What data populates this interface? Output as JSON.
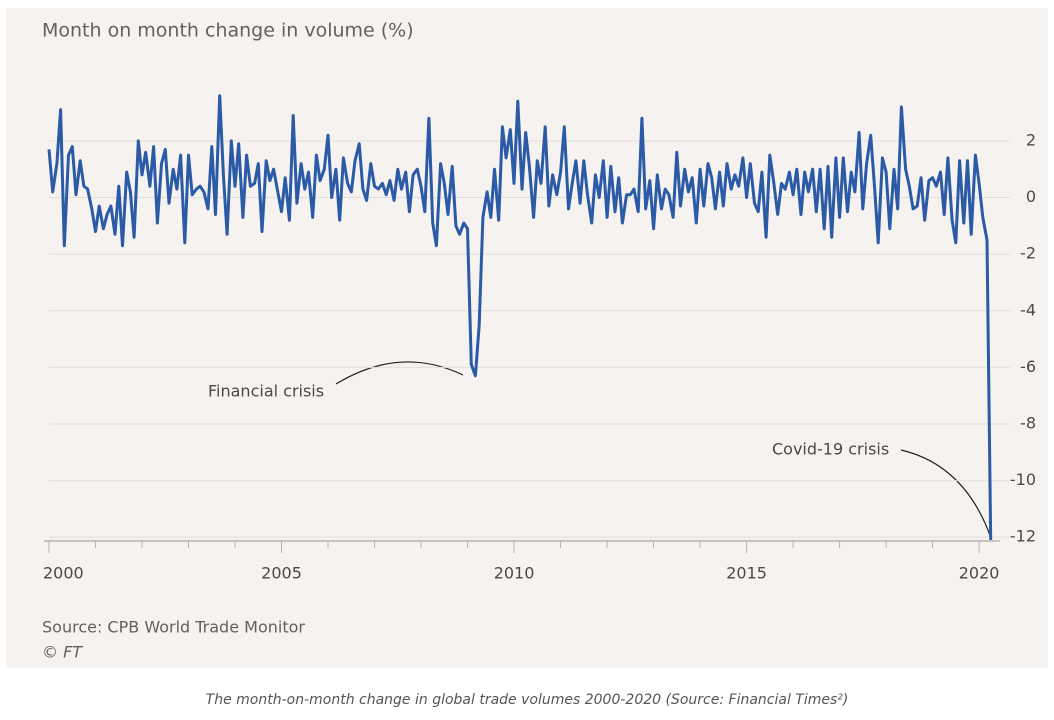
{
  "chart_data": {
    "type": "line",
    "title": "Month on month change in volume (%)",
    "x": [
      2000,
      2000.08,
      2000.17,
      2000.25,
      2000.33,
      2000.42,
      2000.5,
      2000.58,
      2000.67,
      2000.75,
      2000.83,
      2000.92,
      2001,
      2001.08,
      2001.17,
      2001.25,
      2001.33,
      2001.42,
      2001.5,
      2001.58,
      2001.67,
      2001.75,
      2001.83,
      2001.92,
      2002,
      2002.08,
      2002.17,
      2002.25,
      2002.33,
      2002.42,
      2002.5,
      2002.58,
      2002.67,
      2002.75,
      2002.83,
      2002.92,
      2003,
      2003.08,
      2003.17,
      2003.25,
      2003.33,
      2003.42,
      2003.5,
      2003.58,
      2003.67,
      2003.75,
      2003.83,
      2003.92,
      2004,
      2004.08,
      2004.17,
      2004.25,
      2004.33,
      2004.42,
      2004.5,
      2004.58,
      2004.67,
      2004.75,
      2004.83,
      2004.92,
      2005,
      2005.08,
      2005.17,
      2005.25,
      2005.33,
      2005.42,
      2005.5,
      2005.58,
      2005.67,
      2005.75,
      2005.83,
      2005.92,
      2006,
      2006.08,
      2006.17,
      2006.25,
      2006.33,
      2006.42,
      2006.5,
      2006.58,
      2006.67,
      2006.75,
      2006.83,
      2006.92,
      2007,
      2007.08,
      2007.17,
      2007.25,
      2007.33,
      2007.42,
      2007.5,
      2007.58,
      2007.67,
      2007.75,
      2007.83,
      2007.92,
      2008,
      2008.08,
      2008.17,
      2008.25,
      2008.33,
      2008.42,
      2008.5,
      2008.58,
      2008.67,
      2008.75,
      2008.83,
      2008.92,
      2009,
      2009.08,
      2009.17,
      2009.25,
      2009.33,
      2009.42,
      2009.5,
      2009.58,
      2009.67,
      2009.75,
      2009.83,
      2009.92,
      2010,
      2010.08,
      2010.17,
      2010.25,
      2010.33,
      2010.42,
      2010.5,
      2010.58,
      2010.67,
      2010.75,
      2010.83,
      2010.92,
      2011,
      2011.08,
      2011.17,
      2011.25,
      2011.33,
      2011.42,
      2011.5,
      2011.58,
      2011.67,
      2011.75,
      2011.83,
      2011.92,
      2012,
      2012.08,
      2012.17,
      2012.25,
      2012.33,
      2012.42,
      2012.5,
      2012.58,
      2012.67,
      2012.75,
      2012.83,
      2012.92,
      2013,
      2013.08,
      2013.17,
      2013.25,
      2013.33,
      2013.42,
      2013.5,
      2013.58,
      2013.67,
      2013.75,
      2013.83,
      2013.92,
      2014,
      2014.08,
      2014.17,
      2014.25,
      2014.33,
      2014.42,
      2014.5,
      2014.58,
      2014.67,
      2014.75,
      2014.83,
      2014.92,
      2015,
      2015.08,
      2015.17,
      2015.25,
      2015.33,
      2015.42,
      2015.5,
      2015.58,
      2015.67,
      2015.75,
      2015.83,
      2015.92,
      2016,
      2016.08,
      2016.17,
      2016.25,
      2016.33,
      2016.42,
      2016.5,
      2016.58,
      2016.67,
      2016.75,
      2016.83,
      2016.92,
      2017,
      2017.08,
      2017.17,
      2017.25,
      2017.33,
      2017.42,
      2017.5,
      2017.58,
      2017.67,
      2017.75,
      2017.83,
      2017.92,
      2018,
      2018.08,
      2018.17,
      2018.25,
      2018.33,
      2018.42,
      2018.5,
      2018.58,
      2018.67,
      2018.75,
      2018.83,
      2018.92,
      2019,
      2019.08,
      2019.17,
      2019.25,
      2019.33,
      2019.42,
      2019.5,
      2019.58,
      2019.67,
      2019.75,
      2019.83,
      2019.92,
      2020,
      2020.08,
      2020.17,
      2020.25
    ],
    "values": [
      1.7,
      0.2,
      1.2,
      3.1,
      -1.7,
      1.5,
      1.8,
      0.1,
      1.3,
      0.4,
      0.3,
      -0.4,
      -1.2,
      -0.3,
      -1.1,
      -0.6,
      -0.3,
      -1.3,
      0.4,
      -1.7,
      0.9,
      0.2,
      -1.4,
      2.0,
      0.8,
      1.6,
      0.4,
      1.8,
      -0.9,
      1.2,
      1.7,
      -0.2,
      1.0,
      0.3,
      1.5,
      -1.6,
      1.5,
      0.1,
      0.3,
      0.4,
      0.2,
      -0.4,
      1.8,
      -0.6,
      3.6,
      0.8,
      -1.3,
      2.0,
      0.4,
      1.9,
      -0.7,
      1.5,
      0.4,
      0.5,
      1.2,
      -1.2,
      1.3,
      0.6,
      1.0,
      0.2,
      -0.5,
      0.7,
      -0.8,
      2.9,
      -0.2,
      1.2,
      0.3,
      0.9,
      -0.7,
      1.5,
      0.6,
      1.0,
      2.2,
      0.0,
      1.0,
      -0.8,
      1.4,
      0.5,
      0.2,
      1.3,
      1.9,
      0.3,
      -0.1,
      1.2,
      0.4,
      0.3,
      0.5,
      0.1,
      0.6,
      -0.1,
      1.0,
      0.3,
      0.9,
      -0.5,
      0.8,
      1.0,
      0.4,
      -0.5,
      2.8,
      -0.9,
      -1.7,
      1.2,
      0.5,
      -0.6,
      1.1,
      -1.0,
      -1.3,
      -0.9,
      -1.1,
      -5.9,
      -6.3,
      -4.5,
      -0.7,
      0.2,
      -0.7,
      1.0,
      -0.8,
      2.5,
      1.4,
      2.4,
      0.5,
      3.4,
      0.3,
      2.3,
      1.1,
      -0.7,
      1.3,
      0.5,
      2.5,
      -0.3,
      0.8,
      0.1,
      0.9,
      2.5,
      -0.4,
      0.5,
      1.3,
      -0.2,
      1.3,
      0.1,
      -0.9,
      0.8,
      0.0,
      1.3,
      -0.7,
      1.1,
      -0.5,
      0.7,
      -0.9,
      0.1,
      0.1,
      0.3,
      -0.5,
      2.8,
      -0.4,
      0.6,
      -1.1,
      0.8,
      -0.4,
      0.3,
      0.1,
      -0.7,
      1.6,
      -0.3,
      1.0,
      0.2,
      0.7,
      -0.9,
      1.0,
      -0.3,
      1.2,
      0.7,
      -0.4,
      0.9,
      -0.3,
      1.2,
      0.3,
      0.8,
      0.4,
      1.4,
      0.0,
      1.2,
      -0.2,
      -0.5,
      0.9,
      -1.4,
      1.5,
      0.6,
      -0.6,
      0.5,
      0.3,
      0.9,
      0.1,
      1.0,
      -0.6,
      0.9,
      0.2,
      1.0,
      -0.5,
      1.0,
      -1.1,
      1.1,
      -1.4,
      1.4,
      -0.7,
      1.4,
      -0.5,
      0.9,
      0.2,
      2.3,
      -0.4,
      1.2,
      2.2,
      0.4,
      -1.6,
      1.4,
      0.9,
      -1.1,
      1.0,
      -0.4,
      3.2,
      1.0,
      0.4,
      -0.4,
      -0.3,
      0.7,
      -0.8,
      0.6,
      0.7,
      0.4,
      0.9,
      -0.6,
      1.4,
      -0.8,
      -1.6,
      1.3,
      -0.9,
      1.3,
      -1.3,
      1.5,
      0.5,
      -0.7,
      -1.5,
      -12.1
    ],
    "color": "#2b5aa6",
    "xlim": [
      2000,
      2020.6
    ],
    "ylim": [
      -12.1,
      3.8
    ],
    "xticks": [
      2000,
      2005,
      2010,
      2015,
      2020
    ],
    "xminorticks": [
      2001,
      2002,
      2003,
      2004,
      2006,
      2007,
      2008,
      2009,
      2011,
      2012,
      2013,
      2014,
      2016,
      2017,
      2018,
      2019
    ],
    "yticks": [
      2,
      0,
      -2,
      -4,
      -6,
      -8,
      -10,
      -12
    ],
    "grid": true,
    "annotations": [
      "Financial crisis",
      "Covid-19 crisis"
    ],
    "source": "Source: CPB World Trade Monitor",
    "credit": "© FT"
  },
  "caption": "The month-on-month change in global trade volumes 2000-2020 (Source: Financial Times²)"
}
